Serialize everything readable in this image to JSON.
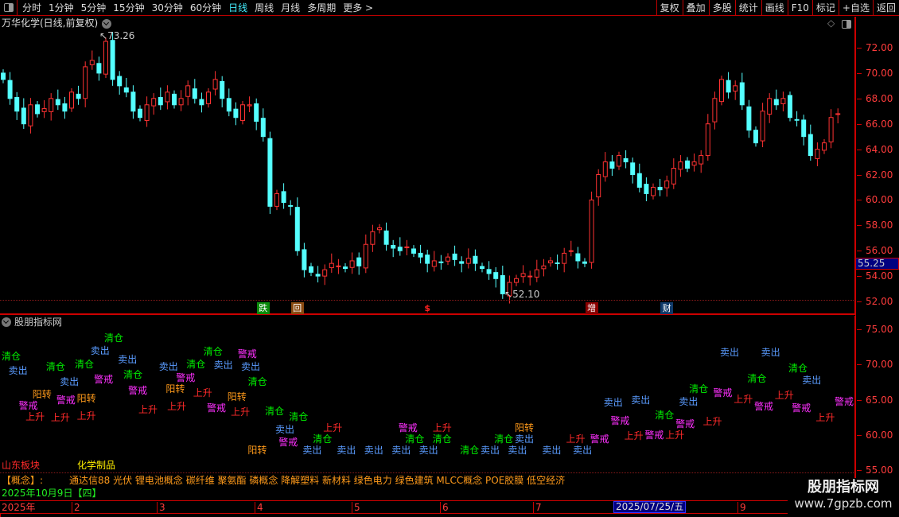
{
  "toolbar": {
    "periods": [
      "分时",
      "1分钟",
      "5分钟",
      "15分钟",
      "30分钟",
      "60分钟",
      "日线",
      "周线",
      "月线",
      "多周期",
      "更多 >"
    ],
    "active": "日线",
    "right_buttons": [
      "复权",
      "叠加",
      "多股",
      "统计",
      "画线",
      "F10",
      "标记",
      "+自选",
      "返回"
    ]
  },
  "main": {
    "title": "万华化学(日线,前复权)",
    "high_label": "73.26",
    "low_label": "52.10",
    "current_price": "55.25",
    "price_ticks": [
      "72.00",
      "70.00",
      "68.00",
      "66.00",
      "64.00",
      "62.00",
      "60.00",
      "58.00",
      "56.00",
      "54.00",
      "52.00"
    ],
    "markers": [
      {
        "text": "跌",
        "color": "#0a8a0a",
        "bar": 38
      },
      {
        "text": "回",
        "color": "#8a4a10",
        "bar": 43
      },
      {
        "text": "$",
        "color": "#ff2020",
        "bar": 62
      },
      {
        "text": "增",
        "color": "#8a0000",
        "bar": 86
      },
      {
        "text": "财",
        "color": "#103a6a",
        "bar": 97
      }
    ]
  },
  "colors": {
    "up": "#ff3232",
    "down": "#54ffff",
    "axis": "#ff3c3c",
    "qingcang": "#00ee00",
    "maichu": "#5a9bff",
    "jingjie": "#ff30ff",
    "shangsheng": "#ff2a2a",
    "yangzhuan": "#ff9a1a"
  },
  "chart_data": {
    "type": "candlestick",
    "ylim": [
      51.5,
      74
    ],
    "closes": [
      69.5,
      68,
      67,
      66,
      67.5,
      66.8,
      67.2,
      68,
      67.5,
      67,
      68.5,
      68,
      70.5,
      71,
      70,
      72.5,
      69.5,
      69,
      68.5,
      67,
      66.5,
      67.5,
      68,
      67.5,
      68.5,
      67.5,
      68,
      69,
      68,
      67.5,
      68.5,
      69.5,
      68,
      67,
      66.5,
      67.5,
      67.5,
      66.2,
      65,
      59.5,
      60.5,
      59.8,
      59.5,
      56,
      54.5,
      54.3,
      54,
      54.5,
      55,
      54.8,
      54.6,
      55.2,
      54.8,
      56.5,
      57.5,
      57.8,
      56.5,
      56.2,
      56,
      56.3,
      55.8,
      55.5,
      55,
      55.2,
      55.1,
      55.5,
      55.3,
      55,
      55.4,
      55,
      54.6,
      54.2,
      53.8,
      52.6,
      53.5,
      53.8,
      54.2,
      54,
      54.5,
      54.8,
      55.2,
      55,
      55.8,
      56,
      55.2,
      55,
      60,
      62,
      63,
      62.5,
      63.5,
      63,
      62,
      61,
      60.5,
      61,
      60.8,
      61.5,
      62.5,
      63,
      62.5,
      63,
      63.5,
      66,
      68,
      69.5,
      68.5,
      69,
      67.5,
      65.5,
      64.5,
      67,
      68,
      67.5,
      68,
      66.5,
      66.3,
      65,
      63.5,
      64,
      64.5,
      66.5,
      66.8
    ]
  },
  "indicator": {
    "title": "股朋指标网",
    "ticks": [
      "75.00",
      "70.00",
      "65.00",
      "60.00",
      "55.00"
    ],
    "signals": [
      [
        "清仓",
        0,
        71.2
      ],
      [
        "卖出",
        1,
        69.1
      ],
      [
        "清仓",
        15,
        73.8
      ],
      [
        "卖出",
        13,
        72
      ],
      [
        "清仓",
        6.5,
        69.7
      ],
      [
        "卖出",
        8.5,
        69.1
      ],
      [
        "清仓",
        10.7,
        68.5
      ],
      [
        "警戒",
        13.5,
        69.5
      ],
      [
        "卖出",
        17,
        70.7
      ],
      [
        "清仓",
        17.8,
        70.1
      ],
      [
        "卖出",
        23,
        69.7
      ],
      [
        "清仓",
        27,
        70
      ],
      [
        "清仓",
        29.5,
        70.3
      ],
      [
        "卖出",
        31,
        69.9
      ],
      [
        "卖出",
        35,
        69.7
      ],
      [
        "清仓",
        36,
        69.1
      ],
      [
        "阳转",
        4.5,
        65.7
      ],
      [
        "警戒",
        8,
        66.5
      ],
      [
        "阳转",
        11,
        65.2
      ],
      [
        "警戒",
        2.5,
        64.1
      ],
      [
        "上升",
        3.5,
        64.1
      ],
      [
        "上升",
        7.2,
        64
      ],
      [
        "上升",
        11,
        64.3
      ],
      [
        "警戒",
        18.5,
        66.3
      ],
      [
        "上升",
        20,
        65.2
      ],
      [
        "阳转",
        24,
        66.5
      ],
      [
        "警戒",
        25.5,
        66.5
      ],
      [
        "上升",
        24.2,
        65.6
      ],
      [
        "上升",
        28,
        66
      ],
      [
        "警戒",
        30,
        67
      ],
      [
        "阳转",
        33,
        65.4
      ],
      [
        "上升",
        33.5,
        64.8
      ],
      [
        "警戒",
        34.5,
        66.8
      ],
      [
        "清仓",
        38.5,
        63.4
      ],
      [
        "卖出",
        40,
        60.8
      ],
      [
        "清仓",
        42,
        61
      ],
      [
        "警戒",
        40.5,
        58.9
      ],
      [
        "阳转",
        39,
        56.6
      ],
      [
        "卖出",
        44,
        55.7
      ],
      [
        "清仓",
        45.5,
        55.2
      ],
      [
        "卖出",
        49,
        56.5
      ],
      [
        "卖出",
        53,
        55.8
      ],
      [
        "卖出",
        57,
        57.4
      ],
      [
        "清仓",
        59,
        57
      ],
      [
        "卖出",
        61,
        56
      ],
      [
        "清仓",
        63,
        56
      ],
      [
        "清仓",
        67,
        56.5
      ],
      [
        "卖出",
        70,
        56
      ],
      [
        "清仓",
        72,
        55
      ],
      [
        "卖出",
        74,
        56
      ],
      [
        "卖出",
        75,
        54.9
      ],
      [
        "卖出",
        79,
        55.9
      ],
      [
        "卖出",
        83.5,
        57.1
      ],
      [
        "上升",
        47,
        52.5
      ],
      [
        "阳转",
        75,
        52
      ],
      [
        "警戒",
        58,
        55
      ],
      [
        "上升",
        63,
        53.5
      ],
      [
        "警戒",
        86,
        54.2
      ],
      [
        "上升",
        82.5,
        53.4
      ],
      [
        "卖出",
        105,
        71.7
      ],
      [
        "卖出",
        111,
        71.7
      ],
      [
        "清仓",
        115,
        69.5
      ],
      [
        "卖出",
        117,
        67.8
      ],
      [
        "清仓",
        109,
        68
      ],
      [
        "上升",
        107,
        66.6
      ],
      [
        "警戒",
        104,
        66
      ],
      [
        "上升",
        113,
        65.6
      ],
      [
        "警戒",
        115.5,
        65.4
      ],
      [
        "警戒",
        110,
        64
      ],
      [
        "警戒",
        122,
        64.7
      ],
      [
        "上升",
        119,
        62.5
      ],
      [
        "卖出",
        88,
        64.6
      ],
      [
        "卖出",
        92,
        65
      ],
      [
        "卖出",
        99,
        64.7
      ],
      [
        "清仓",
        100.5,
        65
      ],
      [
        "警戒",
        89,
        62
      ],
      [
        "上升",
        91,
        61.4
      ],
      [
        "清仓",
        95.5,
        62.8
      ],
      [
        "警戒",
        98.5,
        61.6
      ],
      [
        "上升",
        102.5,
        61.9
      ],
      [
        "警戒",
        94,
        60
      ],
      [
        "上升",
        97,
        60
      ]
    ]
  },
  "info": {
    "region": "山东板块",
    "industry": "化学制品",
    "concept_label": "【概念】:",
    "concepts": "通达信88 光伏 锂电池概念 碳纤维 聚氨酯 磷概念 降解塑料 新材料 绿色电力 绿色建筑 MLCC概念 POE胶膜 低空经济",
    "date": "2025年10月9日【四】"
  },
  "timeaxis": {
    "year": "2025年",
    "months": [
      "2",
      "3",
      "4",
      "5",
      "6",
      "7",
      "9"
    ],
    "cursor_date": "2025/07/25/五"
  },
  "watermark": {
    "name": "股朋指标网",
    "url": "www.7gpzb.com"
  }
}
